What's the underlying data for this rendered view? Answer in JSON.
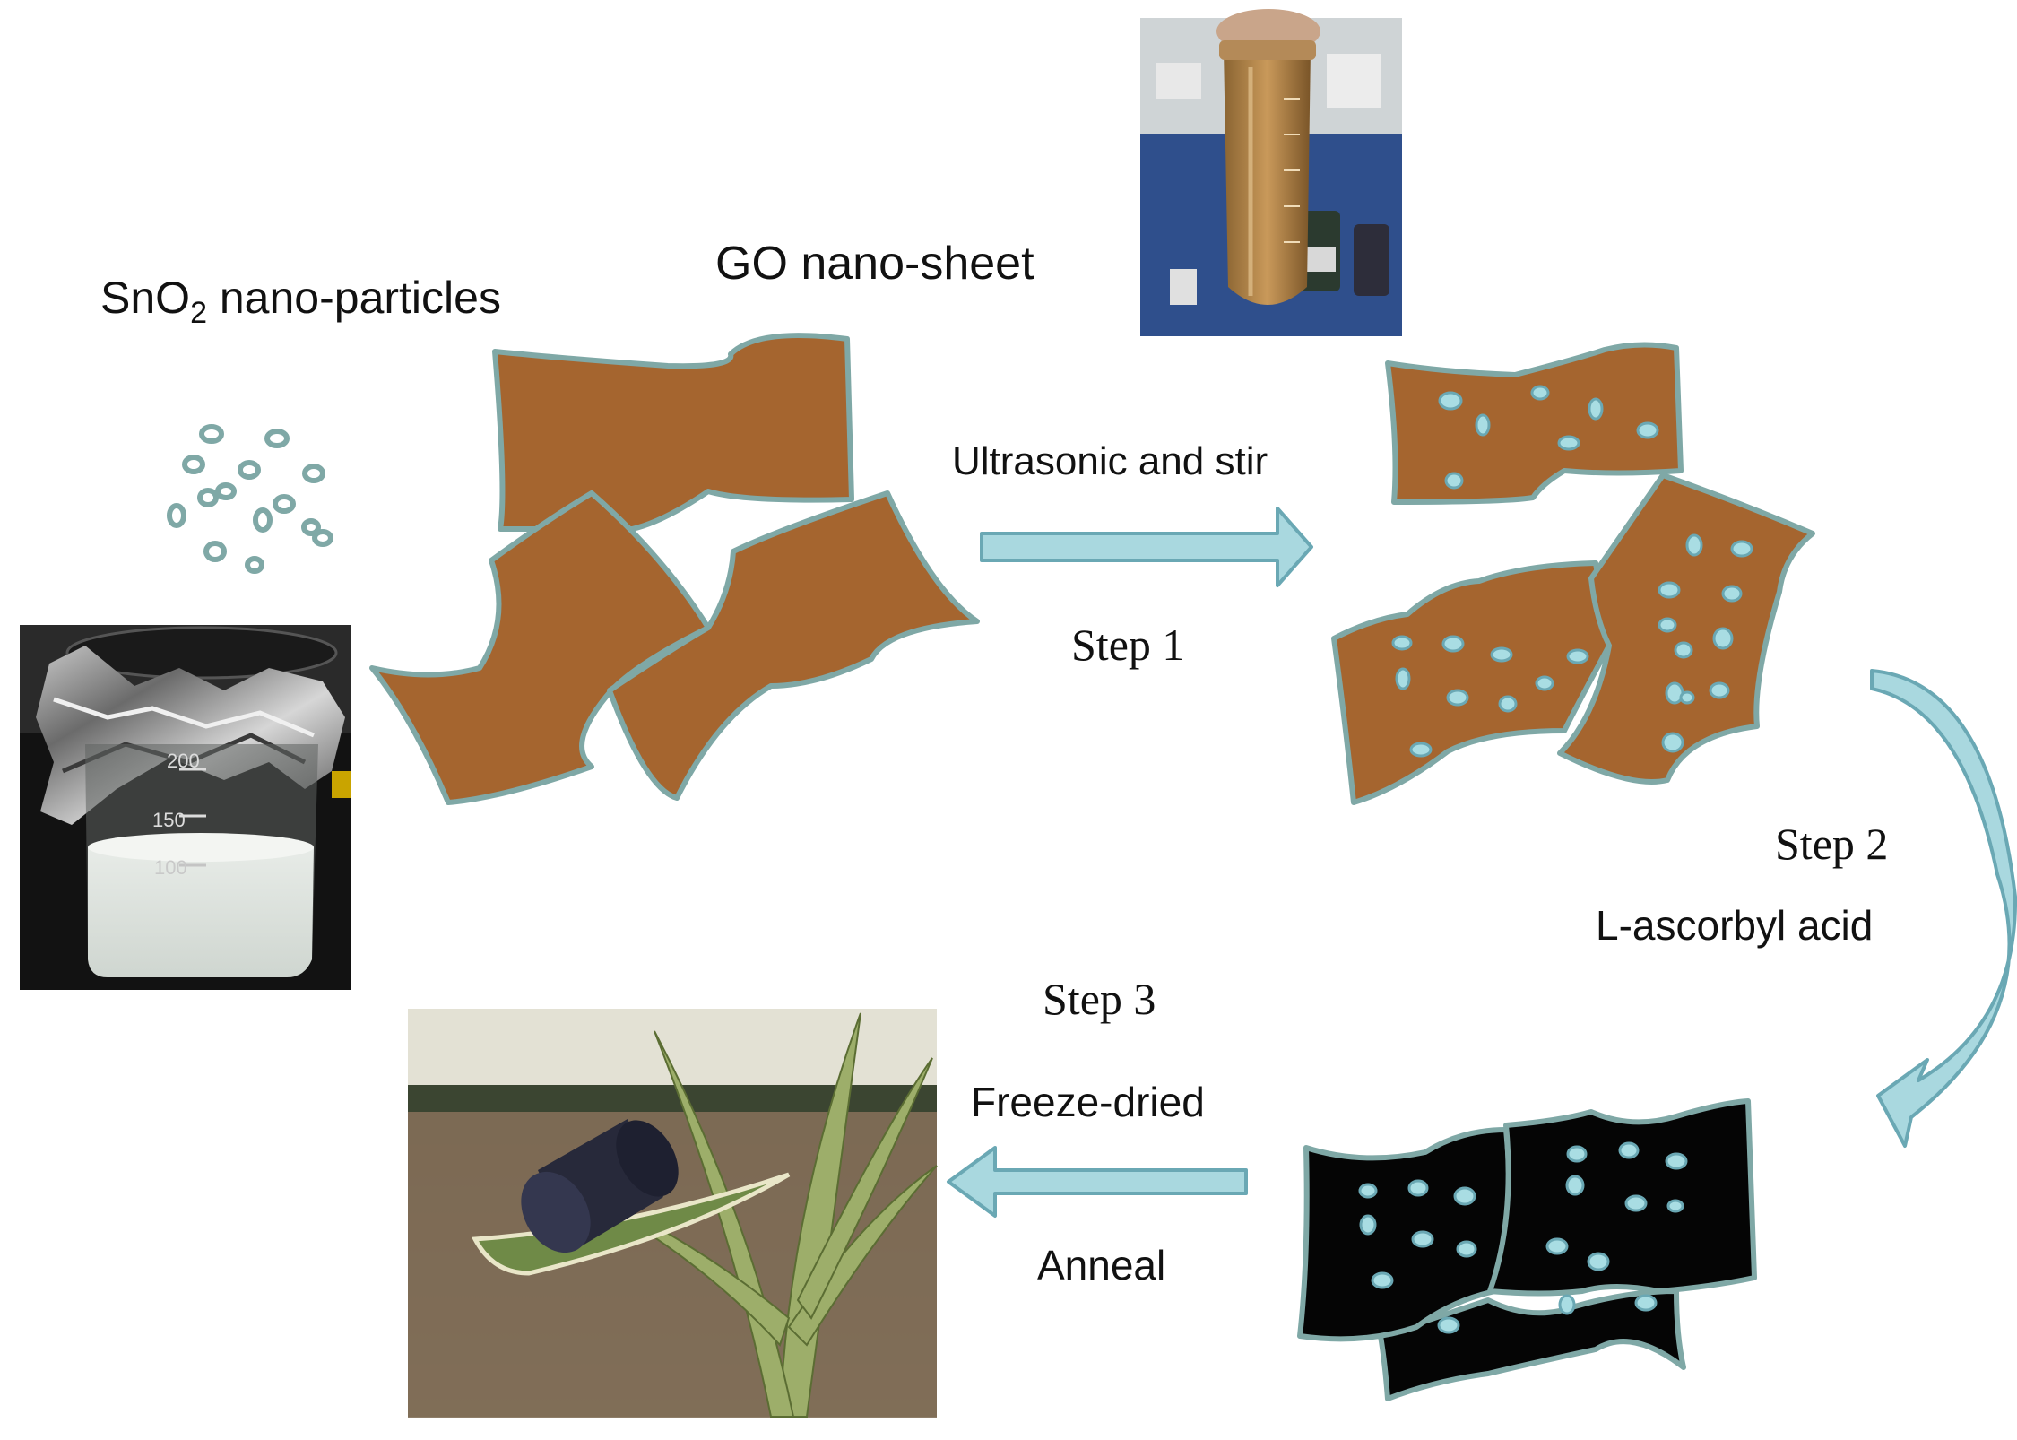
{
  "colors": {
    "sheet_brown": "#a5652f",
    "sheet_edge": "#7fa8a6",
    "particle": "#9fd4dc",
    "reduced_sheet": "#050505",
    "arrow_fill": "#a9d8df",
    "arrow_edge": "#6aa8b4"
  },
  "labels": {
    "sno2_main": "SnO",
    "sno2_sub": "2",
    "sno2_rest": " nano-particles",
    "go": "GO nano-sheet",
    "step1_top": "Ultrasonic and stir",
    "step1": "Step 1",
    "step2": "Step 2",
    "step2_reagent": "L-ascorbyl acid",
    "step3": "Step 3",
    "step3_a": "Freeze-dried",
    "step3_b": "Anneal"
  },
  "photos": {
    "beaker": "beaker-photo",
    "tube": "tube-photo",
    "aerogel": "aerogel-photo",
    "beaker_marks": [
      "200",
      "150",
      "100"
    ]
  }
}
